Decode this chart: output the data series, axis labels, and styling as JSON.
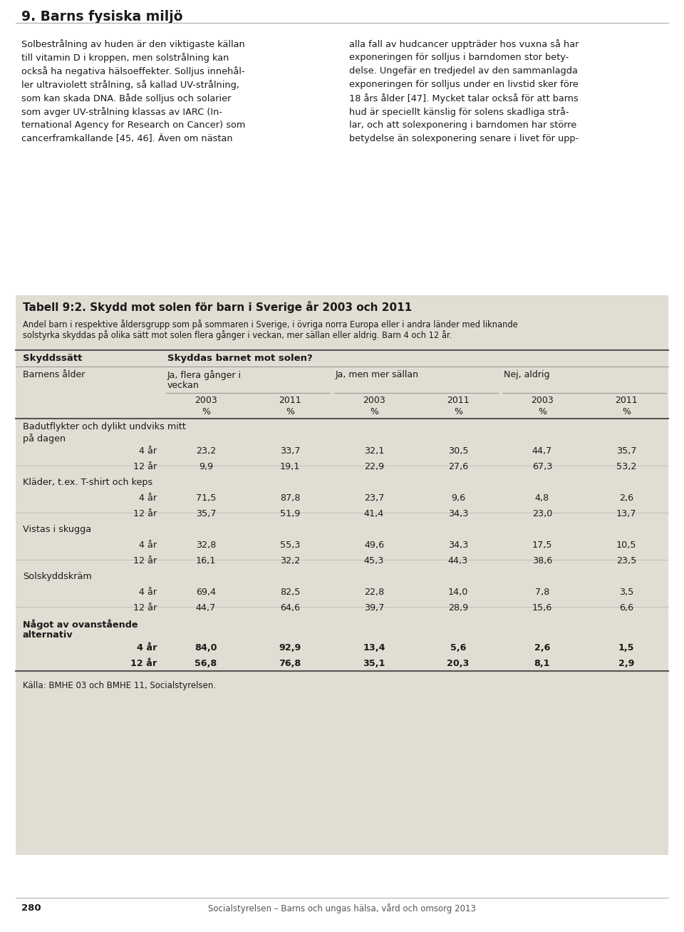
{
  "page_header": "9. Barns fysiska miljö",
  "left_lines": [
    "Solbestrålning av huden är den viktigaste källan",
    "till vitamin D i kroppen, men solstrålning kan",
    "också ha negativa hälsoeffekter. Solljus innehål-",
    "ler ultraviolett strålning, så kallad UV-strålning,",
    "som kan skada DNA. Både solljus och solarier",
    "som avger UV-strålning klassas av IARC (In-",
    "ternational Agency for Research on Cancer) som",
    "cancerframkallande [45, 46]. Även om nästan"
  ],
  "right_lines": [
    "alla fall av hudcancer uppträder hos vuxna så har",
    "exponeringen för solljus i barndomen stor bety-",
    "delse. Ungefär en tredjedel av den sammanlagda",
    "exponeringen för solljus under en livstid sker före",
    "18 års ålder [47]. Mycket talar också för att barns",
    "hud är speciellt känslig för solens skadliga strå-",
    "lar, och att solexponering i barndomen har större",
    "betydelse än solexponering senare i livet för upp-"
  ],
  "table_title": "Tabell 9:2. Skydd mot solen för barn i Sverige år 2003 och 2011",
  "table_subtitle1": "Andel barn i respektive åldersgrupp som på sommaren i Sverige, i övriga norra Europa eller i andra länder med liknande",
  "table_subtitle2": "solstyrka skyddas på olika sätt mot solen flera gånger i veckan, mer sällan eller aldrig. Barn 4 och 12 år.",
  "col_skydd": "Skyddssätt",
  "col_skyddas": "Skyddas barnet mot solen?",
  "col_age": "Barnens ålder",
  "col_g1a": "Ja, flera gånger i",
  "col_g1b": "veckan",
  "col_g2": "Ja, men mer sällan",
  "col_g3": "Nej, aldrig",
  "year_labels": [
    "2003",
    "2011",
    "2003",
    "2011",
    "2003",
    "2011"
  ],
  "pct_labels": [
    "%",
    "%",
    "%",
    "%",
    "%",
    "%"
  ],
  "rows": [
    {
      "label": "Badutflykter och dylikt undviks mitt",
      "label2": "på dagen",
      "is_category": true,
      "bold": false,
      "values": [
        null,
        null,
        null,
        null,
        null,
        null
      ]
    },
    {
      "label": "4 år",
      "label2": null,
      "is_category": false,
      "bold": false,
      "values": [
        "23,2",
        "33,7",
        "32,1",
        "30,5",
        "44,7",
        "35,7"
      ]
    },
    {
      "label": "12 år",
      "label2": null,
      "is_category": false,
      "bold": false,
      "values": [
        "9,9",
        "19,1",
        "22,9",
        "27,6",
        "67,3",
        "53,2"
      ]
    },
    {
      "label": "Kläder, t.ex. T-shirt och keps",
      "label2": null,
      "is_category": true,
      "bold": false,
      "values": [
        null,
        null,
        null,
        null,
        null,
        null
      ]
    },
    {
      "label": "4 år",
      "label2": null,
      "is_category": false,
      "bold": false,
      "values": [
        "71,5",
        "87,8",
        "23,7",
        "9,6",
        "4,8",
        "2,6"
      ]
    },
    {
      "label": "12 år",
      "label2": null,
      "is_category": false,
      "bold": false,
      "values": [
        "35,7",
        "51,9",
        "41,4",
        "34,3",
        "23,0",
        "13,7"
      ]
    },
    {
      "label": "Vistas i skugga",
      "label2": null,
      "is_category": true,
      "bold": false,
      "values": [
        null,
        null,
        null,
        null,
        null,
        null
      ]
    },
    {
      "label": "4 år",
      "label2": null,
      "is_category": false,
      "bold": false,
      "values": [
        "32,8",
        "55,3",
        "49,6",
        "34,3",
        "17,5",
        "10,5"
      ]
    },
    {
      "label": "12 år",
      "label2": null,
      "is_category": false,
      "bold": false,
      "values": [
        "16,1",
        "32,2",
        "45,3",
        "44,3",
        "38,6",
        "23,5"
      ]
    },
    {
      "label": "Solskyddskräm",
      "label2": null,
      "is_category": true,
      "bold": false,
      "values": [
        null,
        null,
        null,
        null,
        null,
        null
      ]
    },
    {
      "label": "4 år",
      "label2": null,
      "is_category": false,
      "bold": false,
      "values": [
        "69,4",
        "82,5",
        "22,8",
        "14,0",
        "7,8",
        "3,5"
      ]
    },
    {
      "label": "12 år",
      "label2": null,
      "is_category": false,
      "bold": false,
      "values": [
        "44,7",
        "64,6",
        "39,7",
        "28,9",
        "15,6",
        "6,6"
      ]
    },
    {
      "label": "Något av ovanstående",
      "label2": "alternativ",
      "is_category": true,
      "bold": true,
      "values": [
        null,
        null,
        null,
        null,
        null,
        null
      ]
    },
    {
      "label": "4 år",
      "label2": null,
      "is_category": false,
      "bold": true,
      "values": [
        "84,0",
        "92,9",
        "13,4",
        "5,6",
        "2,6",
        "1,5"
      ]
    },
    {
      "label": "12 år",
      "label2": null,
      "is_category": false,
      "bold": true,
      "values": [
        "56,8",
        "76,8",
        "35,1",
        "20,3",
        "8,1",
        "2,9"
      ]
    }
  ],
  "source": "Källa: BMHE 03 och BMHE 11, Socialstyrelsen.",
  "page_number": "280",
  "footer": "Socialstyrelsen – Barns och ungas hälsa, vård och omsorg 2013",
  "table_bg": "#e2ddd3",
  "white": "#ffffff",
  "text_dark": "#1a1a1a",
  "line_color": "#999999",
  "line_color_thick": "#555555"
}
